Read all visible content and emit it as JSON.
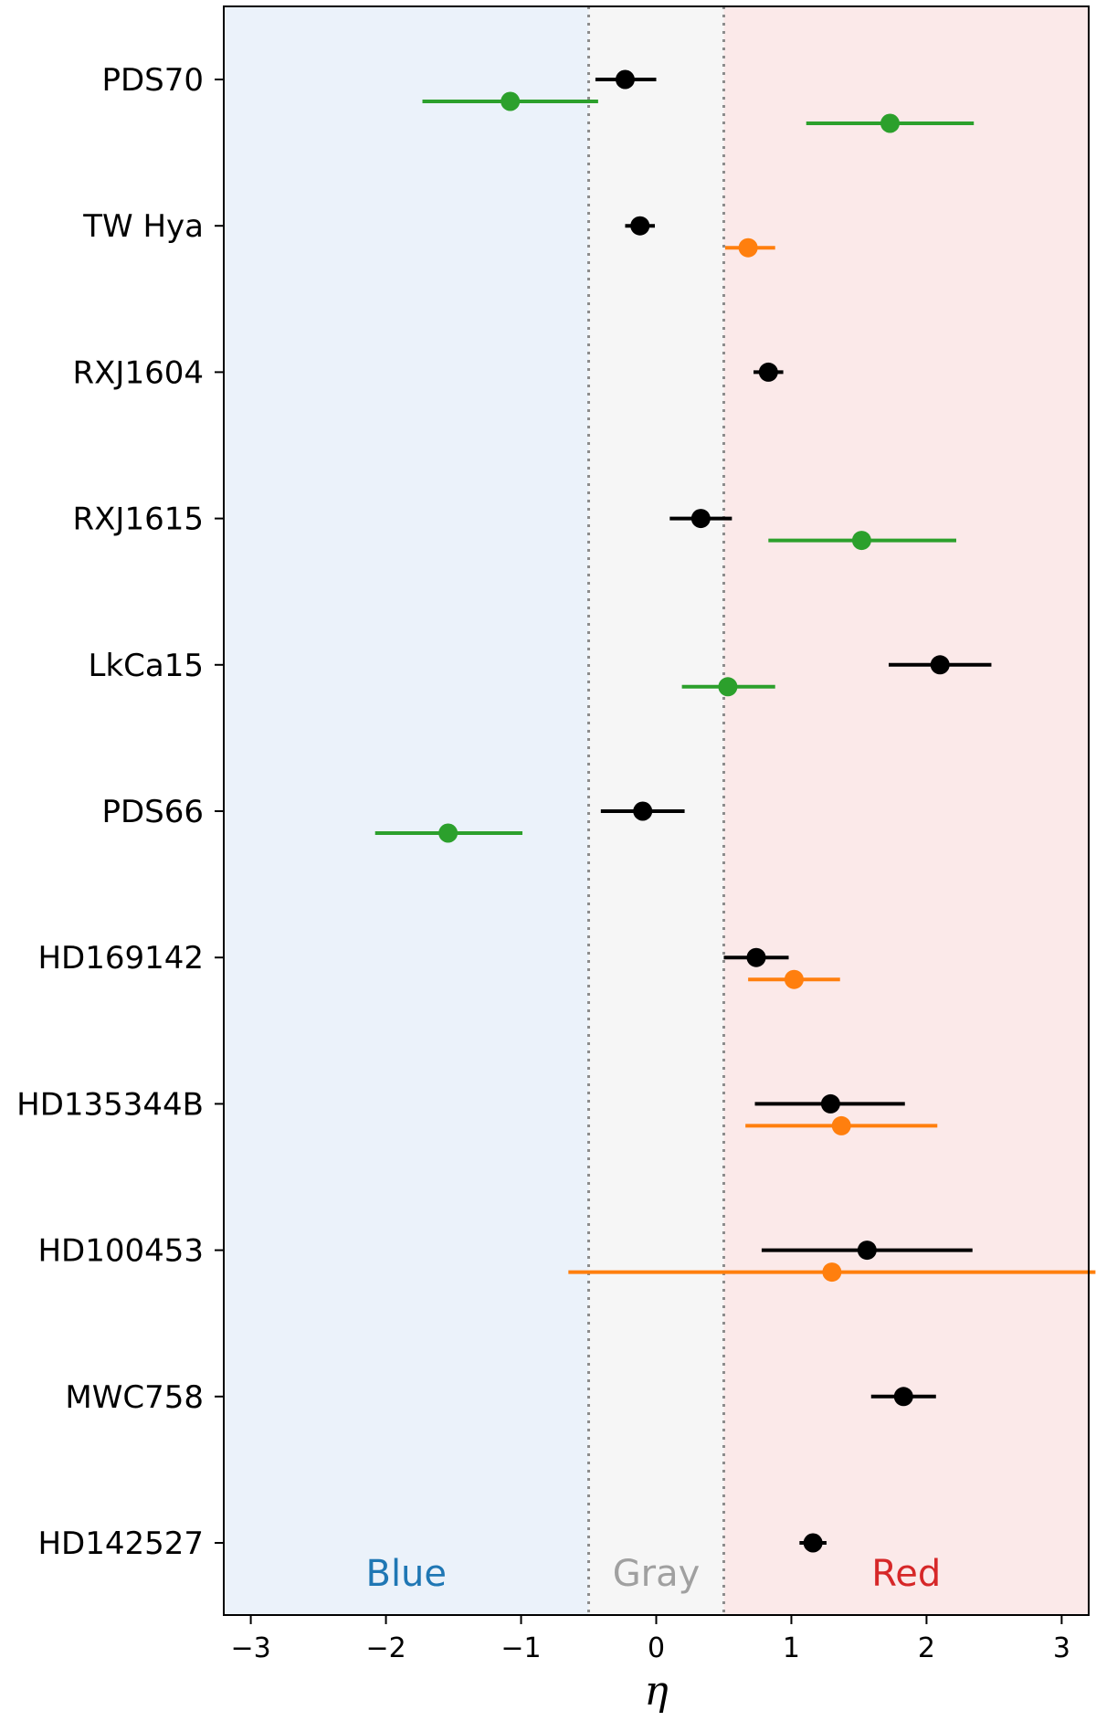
{
  "chart_data": {
    "type": "scatter",
    "xlabel": "η",
    "ylabel": "",
    "xlim": [
      -3.2,
      3.2
    ],
    "x_ticks": [
      -3,
      -2,
      -1,
      0,
      1,
      2,
      3
    ],
    "x_tick_labels": [
      "−3",
      "−2",
      "−1",
      "0",
      "1",
      "2",
      "3"
    ],
    "grid": false,
    "categories": [
      "PDS70",
      "TW Hya",
      "RXJ1604",
      "RXJ1615",
      "LkCa15",
      "PDS66",
      "HD169142",
      "HD135344B",
      "HD100453",
      "MWC758",
      "HD142527"
    ],
    "regions": [
      {
        "label": "Blue",
        "x_range": [
          -3.2,
          -0.5
        ],
        "fill": "#ebf2fa",
        "text_color": "#1f77b4"
      },
      {
        "label": "Gray",
        "x_range": [
          -0.5,
          0.5
        ],
        "fill": "#f6f6f6",
        "text_color": "#a0a0a0"
      },
      {
        "label": "Red",
        "x_range": [
          0.5,
          3.2
        ],
        "fill": "#fbe9e9",
        "text_color": "#d62728"
      }
    ],
    "boundaries": [
      -0.5,
      0.5
    ],
    "series_colors": {
      "black": "#000000",
      "green": "#2ca02c",
      "orange": "#ff7f0e"
    },
    "points": [
      {
        "category": "PDS70",
        "color": "black",
        "offset": 0,
        "x": -0.23,
        "xerr_low": 0.22,
        "xerr_high": 0.23
      },
      {
        "category": "PDS70",
        "color": "green",
        "offset": 1,
        "x": -1.08,
        "xerr_low": 0.65,
        "xerr_high": 0.65
      },
      {
        "category": "PDS70",
        "color": "green",
        "offset": 2,
        "x": 1.73,
        "xerr_low": 0.62,
        "xerr_high": 0.62
      },
      {
        "category": "TW Hya",
        "color": "black",
        "offset": 0,
        "x": -0.12,
        "xerr_low": 0.11,
        "xerr_high": 0.11
      },
      {
        "category": "TW Hya",
        "color": "orange",
        "offset": 1,
        "x": 0.68,
        "xerr_low": 0.17,
        "xerr_high": 0.2
      },
      {
        "category": "RXJ1604",
        "color": "black",
        "offset": 0,
        "x": 0.83,
        "xerr_low": 0.11,
        "xerr_high": 0.11
      },
      {
        "category": "RXJ1615",
        "color": "black",
        "offset": 0,
        "x": 0.33,
        "xerr_low": 0.23,
        "xerr_high": 0.23
      },
      {
        "category": "RXJ1615",
        "color": "green",
        "offset": 1,
        "x": 1.52,
        "xerr_low": 0.69,
        "xerr_high": 0.7
      },
      {
        "category": "LkCa15",
        "color": "black",
        "offset": 0,
        "x": 2.1,
        "xerr_low": 0.38,
        "xerr_high": 0.38
      },
      {
        "category": "LkCa15",
        "color": "green",
        "offset": 1,
        "x": 0.53,
        "xerr_low": 0.34,
        "xerr_high": 0.35
      },
      {
        "category": "PDS66",
        "color": "black",
        "offset": 0,
        "x": -0.1,
        "xerr_low": 0.31,
        "xerr_high": 0.31
      },
      {
        "category": "PDS66",
        "color": "green",
        "offset": 1,
        "x": -1.54,
        "xerr_low": 0.54,
        "xerr_high": 0.55
      },
      {
        "category": "HD169142",
        "color": "black",
        "offset": 0,
        "x": 0.74,
        "xerr_low": 0.24,
        "xerr_high": 0.24
      },
      {
        "category": "HD169142",
        "color": "orange",
        "offset": 1,
        "x": 1.02,
        "xerr_low": 0.34,
        "xerr_high": 0.34
      },
      {
        "category": "HD135344B",
        "color": "black",
        "offset": 0,
        "x": 1.29,
        "xerr_low": 0.56,
        "xerr_high": 0.55
      },
      {
        "category": "HD135344B",
        "color": "orange",
        "offset": 1,
        "x": 1.37,
        "xerr_low": 0.71,
        "xerr_high": 0.71
      },
      {
        "category": "HD100453",
        "color": "black",
        "offset": 0,
        "x": 1.56,
        "xerr_low": 0.78,
        "xerr_high": 0.78
      },
      {
        "category": "HD100453",
        "color": "orange",
        "offset": 1,
        "x": 1.3,
        "xerr_low": 1.95,
        "xerr_high": 1.95
      },
      {
        "category": "MWC758",
        "color": "black",
        "offset": 0,
        "x": 1.83,
        "xerr_low": 0.24,
        "xerr_high": 0.24
      },
      {
        "category": "HD142527",
        "color": "black",
        "offset": 0,
        "x": 1.16,
        "xerr_low": 0.1,
        "xerr_high": 0.1
      }
    ]
  }
}
